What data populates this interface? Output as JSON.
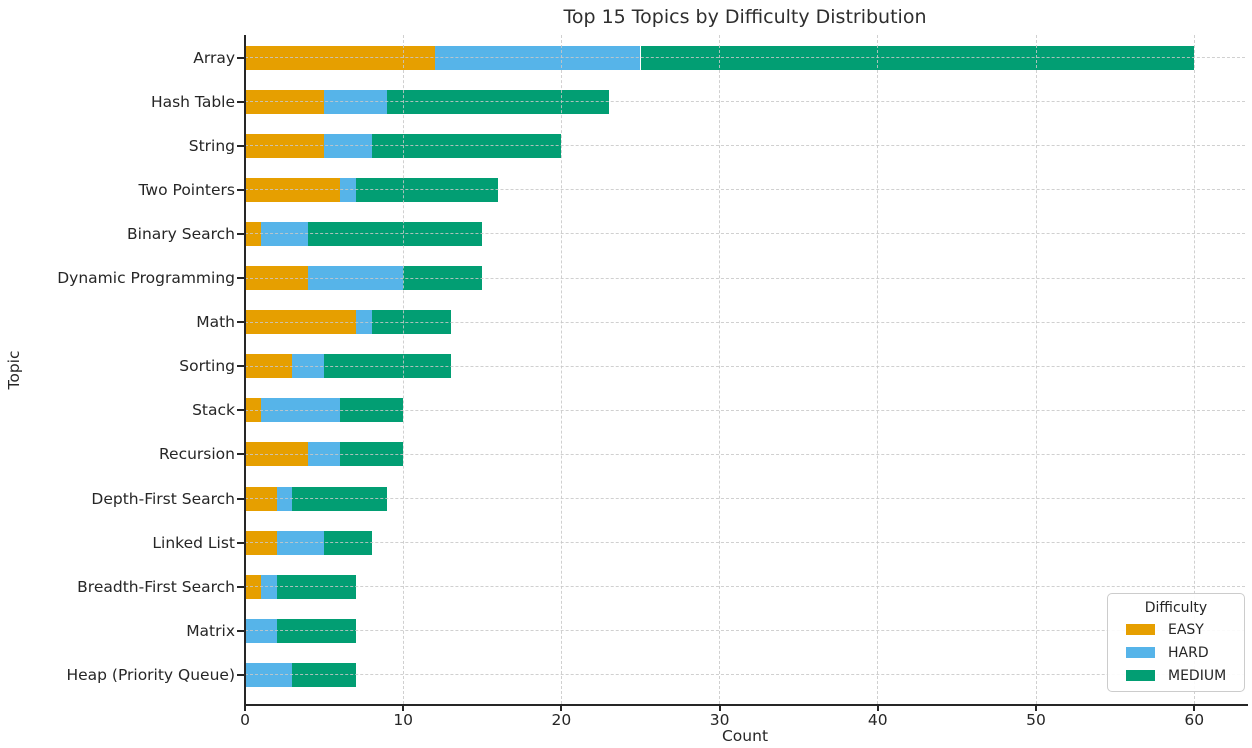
{
  "chart_data": {
    "type": "bar",
    "orientation": "horizontal",
    "stacked": true,
    "title": "Top 15 Topics by Difficulty Distribution",
    "xlabel": "Count",
    "ylabel": "Topic",
    "categories": [
      "Array",
      "Hash Table",
      "String",
      "Two Pointers",
      "Binary Search",
      "Dynamic Programming",
      "Math",
      "Sorting",
      "Stack",
      "Recursion",
      "Depth-First Search",
      "Linked List",
      "Breadth-First Search",
      "Matrix",
      "Heap (Priority Queue)"
    ],
    "series": [
      {
        "name": "EASY",
        "color": "#E69F00",
        "values": [
          12,
          5,
          5,
          6,
          1,
          4,
          7,
          3,
          1,
          4,
          2,
          2,
          1,
          0,
          0
        ]
      },
      {
        "name": "HARD",
        "color": "#56B4E9",
        "values": [
          13,
          4,
          3,
          1,
          3,
          6,
          1,
          2,
          5,
          2,
          1,
          3,
          1,
          2,
          3
        ]
      },
      {
        "name": "MEDIUM",
        "color": "#029E73",
        "values": [
          35,
          14,
          12,
          9,
          11,
          5,
          5,
          8,
          4,
          4,
          6,
          3,
          5,
          5,
          4
        ]
      }
    ],
    "xticks": [
      0,
      10,
      20,
      30,
      40,
      50,
      60
    ],
    "xlim": [
      0,
      63.2
    ],
    "grid": true,
    "grid_style": "dashed",
    "legend": {
      "title": "Difficulty",
      "position": "lower right"
    },
    "style": {
      "text_color": "#262626",
      "axis_color": "#262626",
      "gridline_color": "#c8c8c8",
      "background": "#ffffff"
    }
  }
}
